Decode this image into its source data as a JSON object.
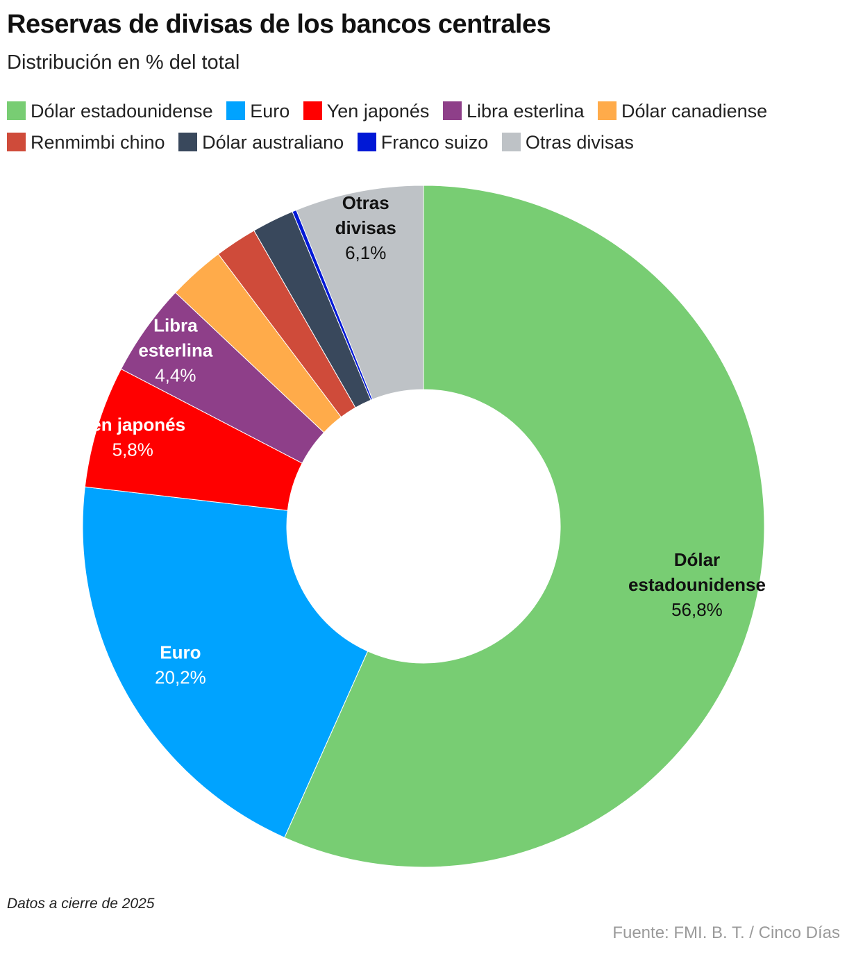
{
  "title": "Reservas de divisas de los bancos centrales",
  "subtitle": "Distribución en % del total",
  "note": "Datos a cierre de 2025",
  "source": "Fuente: FMI. B. T. / Cinco Días",
  "chart_data": {
    "type": "pie",
    "variant": "donut",
    "unit": "%",
    "legend_position": "top",
    "categories": [
      "Dólar estadounidense",
      "Euro",
      "Yen japonés",
      "Libra esterlina",
      "Dólar canadiense",
      "Renmimbi chino",
      "Dólar australiano",
      "Franco suizo",
      "Otras divisas"
    ],
    "values": [
      56.8,
      20.2,
      5.8,
      4.4,
      2.7,
      2.0,
      2.0,
      0.2,
      6.1
    ],
    "colors": [
      "#78cd73",
      "#00a3ff",
      "#ff0000",
      "#8e3f89",
      "#ffab4a",
      "#cf4b3a",
      "#39485c",
      "#0018d6",
      "#bec2c6"
    ],
    "slice_labels": [
      {
        "lines": [
          "Dólar",
          "estadounidense"
        ],
        "value": "56,8%",
        "color": "#111111"
      },
      {
        "lines": [
          "Euro"
        ],
        "value": "20,2%",
        "color": "#ffffff"
      },
      {
        "lines": [
          "Yen japonés"
        ],
        "value": "5,8%",
        "color": "#ffffff"
      },
      {
        "lines": [
          "Libra",
          "esterlina"
        ],
        "value": "4,4%",
        "color": "#ffffff"
      },
      null,
      null,
      null,
      null,
      {
        "lines": [
          "Otras",
          "divisas"
        ],
        "value": "6,1%",
        "color": "#111111"
      }
    ]
  }
}
